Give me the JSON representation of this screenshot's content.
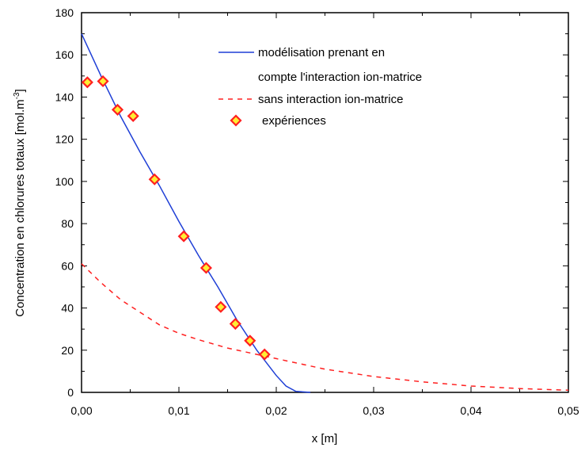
{
  "chart_data": {
    "type": "line",
    "xlabel": "x [m]",
    "ylabel": "Concentration en chlorures totaux [mol.m",
    "ylabel_sup": "-3",
    "ylabel_close": "]",
    "xlim": [
      0,
      0.05
    ],
    "ylim": [
      0,
      180
    ],
    "xticks": [
      0,
      0.01,
      0.02,
      0.03,
      0.04,
      0.05
    ],
    "xtick_labels": [
      "0,00",
      "0,01",
      "0,02",
      "0,03",
      "0,04",
      "0,05"
    ],
    "yticks": [
      0,
      20,
      40,
      60,
      80,
      100,
      120,
      140,
      160,
      180
    ],
    "ytick_labels": [
      "0",
      "20",
      "40",
      "60",
      "80",
      "100",
      "120",
      "140",
      "160",
      "180"
    ],
    "grid": false,
    "legend_position": "top-right",
    "series": [
      {
        "name": "modélisation prenant en compte l'interaction ion-matrice",
        "legend_lines": [
          "modélisation prenant en",
          "compte l'interaction ion-matrice"
        ],
        "style": "solid",
        "color": "#1f3fd6",
        "points": [
          [
            0,
            170
          ],
          [
            0.002,
            150
          ],
          [
            0.004,
            131
          ],
          [
            0.006,
            114
          ],
          [
            0.008,
            98
          ],
          [
            0.01,
            81
          ],
          [
            0.012,
            65
          ],
          [
            0.014,
            50
          ],
          [
            0.016,
            34
          ],
          [
            0.018,
            20
          ],
          [
            0.02,
            8
          ],
          [
            0.021,
            3
          ],
          [
            0.022,
            0.5
          ],
          [
            0.0235,
            0
          ]
        ]
      },
      {
        "name": "sans interaction ion-matrice",
        "style": "dashed",
        "color": "#ff2020",
        "points": [
          [
            0,
            61
          ],
          [
            0.002,
            52
          ],
          [
            0.004,
            44
          ],
          [
            0.006,
            38
          ],
          [
            0.008,
            32
          ],
          [
            0.01,
            28
          ],
          [
            0.012,
            25
          ],
          [
            0.015,
            21
          ],
          [
            0.02,
            16
          ],
          [
            0.025,
            11
          ],
          [
            0.03,
            7.5
          ],
          [
            0.035,
            5
          ],
          [
            0.04,
            3
          ],
          [
            0.045,
            1.8
          ],
          [
            0.05,
            1
          ]
        ]
      },
      {
        "name": "expériences",
        "style": "markers",
        "color": "#ff2020",
        "fill": "#ffee33",
        "points": [
          [
            0.0006,
            147
          ],
          [
            0.0022,
            147.5
          ],
          [
            0.0037,
            134
          ],
          [
            0.0053,
            131
          ],
          [
            0.0075,
            101
          ],
          [
            0.0105,
            74
          ],
          [
            0.0128,
            59
          ],
          [
            0.0143,
            40.5
          ],
          [
            0.0158,
            32.5
          ],
          [
            0.0173,
            24.5
          ],
          [
            0.0188,
            18
          ]
        ]
      }
    ]
  }
}
